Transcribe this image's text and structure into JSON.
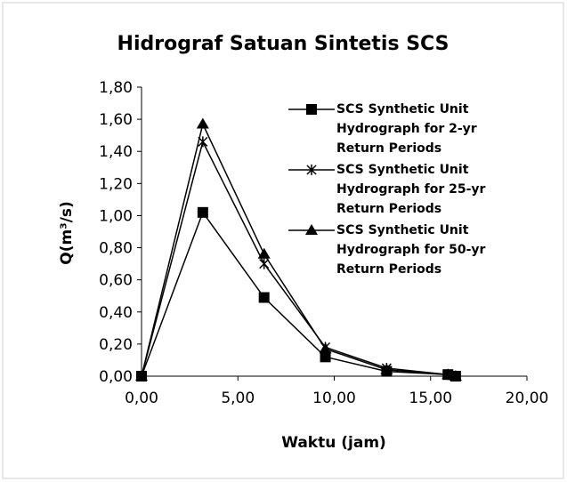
{
  "chart_data": {
    "type": "line",
    "title": "Hidrograf Satuan Sintetis SCS",
    "x_label": "Waktu (jam)",
    "y_label": "Q(m³/s)",
    "x": [
      0,
      3.18,
      6.36,
      9.54,
      12.72,
      15.9,
      16.3
    ],
    "series": [
      {
        "name": "SCS Synthetic Unit Hydrograph for 2-yr Return Periods",
        "color": "#000000",
        "marker": "square",
        "values": [
          0,
          1.02,
          0.49,
          0.12,
          0.03,
          0.01,
          0
        ]
      },
      {
        "name": "SCS Synthetic Unit Hydrograph for 25-yr Return Periods",
        "color": "#000000",
        "marker": "star",
        "values": [
          0,
          1.46,
          0.7,
          0.18,
          0.05,
          0.01,
          0
        ]
      },
      {
        "name": "SCS Synthetic Unit Hydrograph for 50-yr Return Periods",
        "color": "#000000",
        "marker": "triangle",
        "values": [
          0,
          1.57,
          0.76,
          0.17,
          0.04,
          0.01,
          0
        ]
      }
    ],
    "xlim": [
      0,
      20
    ],
    "xticks": [
      {
        "value": 0,
        "label": "0,00"
      },
      {
        "value": 5,
        "label": "5,00"
      },
      {
        "value": 10,
        "label": "10,00"
      },
      {
        "value": 15,
        "label": "15,00"
      },
      {
        "value": 20,
        "label": "20,00"
      }
    ],
    "ylim": [
      0,
      1.8
    ],
    "yticks": [
      {
        "value": 0,
        "label": "0,00"
      },
      {
        "value": 0.2,
        "label": "0,20"
      },
      {
        "value": 0.4,
        "label": "0,40"
      },
      {
        "value": 0.6,
        "label": "0,60"
      },
      {
        "value": 0.8,
        "label": "0,80"
      },
      {
        "value": 1,
        "label": "1,00"
      },
      {
        "value": 1.2,
        "label": "1,20"
      },
      {
        "value": 1.4,
        "label": "1,40"
      },
      {
        "value": 1.6,
        "label": "1,60"
      },
      {
        "value": 1.8,
        "label": "1,80"
      }
    ],
    "grid": false
  }
}
